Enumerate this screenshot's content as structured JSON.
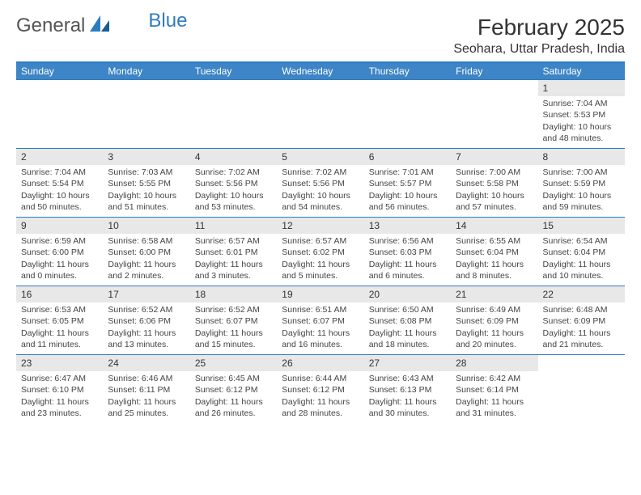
{
  "brand": {
    "part1": "General",
    "part2": "Blue"
  },
  "title": "February 2025",
  "location": "Seohara, Uttar Pradesh, India",
  "colors": {
    "header_bg": "#3d85c6",
    "header_border": "#2f7bbf",
    "daynum_bg": "#e8e8e8",
    "text": "#333333",
    "body_bg": "#ffffff"
  },
  "day_headers": [
    "Sunday",
    "Monday",
    "Tuesday",
    "Wednesday",
    "Thursday",
    "Friday",
    "Saturday"
  ],
  "weeks": [
    [
      {
        "n": "",
        "sr": "",
        "ss": "",
        "dl": ""
      },
      {
        "n": "",
        "sr": "",
        "ss": "",
        "dl": ""
      },
      {
        "n": "",
        "sr": "",
        "ss": "",
        "dl": ""
      },
      {
        "n": "",
        "sr": "",
        "ss": "",
        "dl": ""
      },
      {
        "n": "",
        "sr": "",
        "ss": "",
        "dl": ""
      },
      {
        "n": "",
        "sr": "",
        "ss": "",
        "dl": ""
      },
      {
        "n": "1",
        "sr": "Sunrise: 7:04 AM",
        "ss": "Sunset: 5:53 PM",
        "dl": "Daylight: 10 hours and 48 minutes."
      }
    ],
    [
      {
        "n": "2",
        "sr": "Sunrise: 7:04 AM",
        "ss": "Sunset: 5:54 PM",
        "dl": "Daylight: 10 hours and 50 minutes."
      },
      {
        "n": "3",
        "sr": "Sunrise: 7:03 AM",
        "ss": "Sunset: 5:55 PM",
        "dl": "Daylight: 10 hours and 51 minutes."
      },
      {
        "n": "4",
        "sr": "Sunrise: 7:02 AM",
        "ss": "Sunset: 5:56 PM",
        "dl": "Daylight: 10 hours and 53 minutes."
      },
      {
        "n": "5",
        "sr": "Sunrise: 7:02 AM",
        "ss": "Sunset: 5:56 PM",
        "dl": "Daylight: 10 hours and 54 minutes."
      },
      {
        "n": "6",
        "sr": "Sunrise: 7:01 AM",
        "ss": "Sunset: 5:57 PM",
        "dl": "Daylight: 10 hours and 56 minutes."
      },
      {
        "n": "7",
        "sr": "Sunrise: 7:00 AM",
        "ss": "Sunset: 5:58 PM",
        "dl": "Daylight: 10 hours and 57 minutes."
      },
      {
        "n": "8",
        "sr": "Sunrise: 7:00 AM",
        "ss": "Sunset: 5:59 PM",
        "dl": "Daylight: 10 hours and 59 minutes."
      }
    ],
    [
      {
        "n": "9",
        "sr": "Sunrise: 6:59 AM",
        "ss": "Sunset: 6:00 PM",
        "dl": "Daylight: 11 hours and 0 minutes."
      },
      {
        "n": "10",
        "sr": "Sunrise: 6:58 AM",
        "ss": "Sunset: 6:00 PM",
        "dl": "Daylight: 11 hours and 2 minutes."
      },
      {
        "n": "11",
        "sr": "Sunrise: 6:57 AM",
        "ss": "Sunset: 6:01 PM",
        "dl": "Daylight: 11 hours and 3 minutes."
      },
      {
        "n": "12",
        "sr": "Sunrise: 6:57 AM",
        "ss": "Sunset: 6:02 PM",
        "dl": "Daylight: 11 hours and 5 minutes."
      },
      {
        "n": "13",
        "sr": "Sunrise: 6:56 AM",
        "ss": "Sunset: 6:03 PM",
        "dl": "Daylight: 11 hours and 6 minutes."
      },
      {
        "n": "14",
        "sr": "Sunrise: 6:55 AM",
        "ss": "Sunset: 6:04 PM",
        "dl": "Daylight: 11 hours and 8 minutes."
      },
      {
        "n": "15",
        "sr": "Sunrise: 6:54 AM",
        "ss": "Sunset: 6:04 PM",
        "dl": "Daylight: 11 hours and 10 minutes."
      }
    ],
    [
      {
        "n": "16",
        "sr": "Sunrise: 6:53 AM",
        "ss": "Sunset: 6:05 PM",
        "dl": "Daylight: 11 hours and 11 minutes."
      },
      {
        "n": "17",
        "sr": "Sunrise: 6:52 AM",
        "ss": "Sunset: 6:06 PM",
        "dl": "Daylight: 11 hours and 13 minutes."
      },
      {
        "n": "18",
        "sr": "Sunrise: 6:52 AM",
        "ss": "Sunset: 6:07 PM",
        "dl": "Daylight: 11 hours and 15 minutes."
      },
      {
        "n": "19",
        "sr": "Sunrise: 6:51 AM",
        "ss": "Sunset: 6:07 PM",
        "dl": "Daylight: 11 hours and 16 minutes."
      },
      {
        "n": "20",
        "sr": "Sunrise: 6:50 AM",
        "ss": "Sunset: 6:08 PM",
        "dl": "Daylight: 11 hours and 18 minutes."
      },
      {
        "n": "21",
        "sr": "Sunrise: 6:49 AM",
        "ss": "Sunset: 6:09 PM",
        "dl": "Daylight: 11 hours and 20 minutes."
      },
      {
        "n": "22",
        "sr": "Sunrise: 6:48 AM",
        "ss": "Sunset: 6:09 PM",
        "dl": "Daylight: 11 hours and 21 minutes."
      }
    ],
    [
      {
        "n": "23",
        "sr": "Sunrise: 6:47 AM",
        "ss": "Sunset: 6:10 PM",
        "dl": "Daylight: 11 hours and 23 minutes."
      },
      {
        "n": "24",
        "sr": "Sunrise: 6:46 AM",
        "ss": "Sunset: 6:11 PM",
        "dl": "Daylight: 11 hours and 25 minutes."
      },
      {
        "n": "25",
        "sr": "Sunrise: 6:45 AM",
        "ss": "Sunset: 6:12 PM",
        "dl": "Daylight: 11 hours and 26 minutes."
      },
      {
        "n": "26",
        "sr": "Sunrise: 6:44 AM",
        "ss": "Sunset: 6:12 PM",
        "dl": "Daylight: 11 hours and 28 minutes."
      },
      {
        "n": "27",
        "sr": "Sunrise: 6:43 AM",
        "ss": "Sunset: 6:13 PM",
        "dl": "Daylight: 11 hours and 30 minutes."
      },
      {
        "n": "28",
        "sr": "Sunrise: 6:42 AM",
        "ss": "Sunset: 6:14 PM",
        "dl": "Daylight: 11 hours and 31 minutes."
      },
      {
        "n": "",
        "sr": "",
        "ss": "",
        "dl": ""
      }
    ]
  ]
}
